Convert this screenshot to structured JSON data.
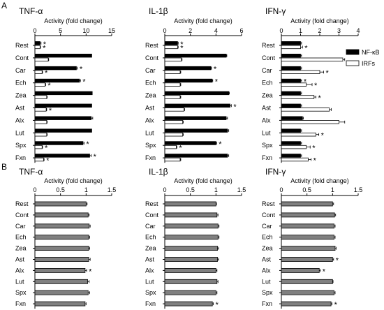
{
  "panel_labels": [
    "A",
    "B"
  ],
  "colors": {
    "nfkb": "#000000",
    "irfs": "#ffffff",
    "panelB": "#808080",
    "stroke": "#000000"
  },
  "legend": [
    {
      "label": "NF-κB",
      "fill": "#000000"
    },
    {
      "label": "IRFs",
      "fill": "#ffffff"
    }
  ],
  "chart_data": [
    {
      "panel": "A",
      "title": "TNF-α",
      "type": "bar",
      "orientation": "horizontal",
      "xlabel": "Activity (fold change)",
      "xlim": [
        0,
        15
      ],
      "xticks": [
        0,
        5,
        10,
        15
      ],
      "categories": [
        "Rest",
        "Cont",
        "Car",
        "Ech",
        "Zea",
        "Ast",
        "Alx",
        "Lut",
        "Spx",
        "Fxn"
      ],
      "series": [
        {
          "name": "NF-κB",
          "values": [
            1.0,
            11.1,
            8.1,
            8.7,
            11.2,
            11.1,
            11.0,
            11.1,
            9.4,
            10.7
          ],
          "errors": [
            0.2,
            0.0,
            0.2,
            0.2,
            0.0,
            0.0,
            0.3,
            0.0,
            0.2,
            0.3
          ],
          "significant": [
            true,
            false,
            true,
            true,
            false,
            false,
            false,
            false,
            true,
            true
          ]
        },
        {
          "name": "IRFs",
          "values": [
            1.0,
            2.6,
            1.4,
            2.0,
            2.3,
            2.2,
            2.3,
            2.3,
            1.4,
            1.7
          ],
          "errors": [
            0.1,
            0.1,
            0.1,
            0.1,
            0.1,
            0.1,
            0.1,
            0.1,
            0.1,
            0.1
          ],
          "significant": [
            true,
            false,
            true,
            true,
            false,
            true,
            false,
            false,
            true,
            true
          ]
        }
      ]
    },
    {
      "panel": "A",
      "title": "IL-1β",
      "type": "bar",
      "orientation": "horizontal",
      "xlabel": "Activity (fold change)",
      "xlim": [
        0,
        6
      ],
      "xticks": [
        0,
        2,
        4,
        6
      ],
      "categories": [
        "Rest",
        "Cont",
        "Car",
        "Ech",
        "Zea",
        "Ast",
        "Alx",
        "Lut",
        "Spx",
        "Fxn"
      ],
      "series": [
        {
          "name": "NF-κB",
          "values": [
            1.0,
            4.8,
            3.6,
            3.7,
            5.0,
            5.1,
            4.8,
            4.9,
            4.0,
            4.9
          ],
          "errors": [
            0.05,
            0.05,
            0.05,
            0.05,
            0.05,
            0.1,
            0.1,
            0.1,
            0.05,
            0.1
          ],
          "significant": [
            true,
            false,
            true,
            true,
            false,
            true,
            false,
            false,
            true,
            false
          ]
        },
        {
          "name": "IRFs",
          "values": [
            1.0,
            1.3,
            1.2,
            1.2,
            1.2,
            1.5,
            1.4,
            1.4,
            0.9,
            1.2
          ],
          "errors": [
            0.05,
            0.05,
            0.05,
            0.05,
            0.05,
            0.05,
            0.05,
            0.05,
            0.05,
            0.05
          ],
          "significant": [
            true,
            false,
            false,
            false,
            false,
            false,
            false,
            false,
            true,
            false
          ]
        }
      ]
    },
    {
      "panel": "A",
      "title": "IFN-γ",
      "type": "bar",
      "orientation": "horizontal",
      "xlabel": "Activity (fold change)",
      "xlim": [
        0,
        4
      ],
      "xticks": [
        0,
        1,
        2,
        3,
        4
      ],
      "categories": [
        "Rest",
        "Cont",
        "Car",
        "Ech",
        "Zea",
        "Ast",
        "Alx",
        "Lut",
        "Spx",
        "Fxn"
      ],
      "series": [
        {
          "name": "NF-κB",
          "values": [
            1.0,
            1.0,
            1.0,
            1.0,
            1.0,
            1.0,
            1.1,
            1.0,
            1.0,
            1.0
          ],
          "errors": [
            0.05,
            0.05,
            0.05,
            0.05,
            0.05,
            0.05,
            0.05,
            0.05,
            0.05,
            0.05
          ],
          "significant": [
            false,
            false,
            false,
            true,
            false,
            false,
            false,
            false,
            false,
            false
          ]
        },
        {
          "name": "IRFs",
          "values": [
            1.0,
            3.2,
            2.0,
            1.3,
            1.7,
            2.5,
            3.0,
            1.8,
            1.3,
            1.4
          ],
          "errors": [
            0.1,
            0.1,
            0.2,
            0.3,
            0.1,
            0.1,
            0.3,
            0.15,
            0.2,
            0.15
          ],
          "significant": [
            true,
            false,
            true,
            true,
            true,
            false,
            false,
            true,
            true,
            true
          ]
        }
      ]
    },
    {
      "panel": "B",
      "title": "TNF-α",
      "type": "bar",
      "orientation": "horizontal",
      "xlabel": "Activity (fold change)",
      "xlim": [
        0,
        1.5
      ],
      "xticks": [
        0,
        0.5,
        1,
        1.5
      ],
      "categories": [
        "Rest",
        "Cont",
        "Car",
        "Ech",
        "Zea",
        "Ast",
        "Alx",
        "Lut",
        "Spx",
        "Fxn"
      ],
      "series": [
        {
          "name": "",
          "values": [
            1.0,
            1.04,
            1.06,
            1.05,
            1.05,
            1.05,
            0.98,
            1.03,
            1.04,
            0.98
          ],
          "errors": [
            0.02,
            0.02,
            0.02,
            0.02,
            0.02,
            0.03,
            0.03,
            0.03,
            0.03,
            0.02
          ],
          "significant": [
            false,
            false,
            false,
            false,
            false,
            false,
            true,
            false,
            false,
            false
          ]
        }
      ]
    },
    {
      "panel": "B",
      "title": "IL-1β",
      "type": "bar",
      "orientation": "horizontal",
      "xlabel": "Activity (fold change)",
      "xlim": [
        0,
        1.5
      ],
      "xticks": [
        0,
        0.5,
        1,
        1.5
      ],
      "categories": [
        "Rest",
        "Cont",
        "Car",
        "Ech",
        "Zea",
        "Ast",
        "Alx",
        "Lut",
        "Spx",
        "Fxn"
      ],
      "series": [
        {
          "name": "",
          "values": [
            1.0,
            1.02,
            1.04,
            1.04,
            1.03,
            1.03,
            1.0,
            1.02,
            1.0,
            0.93
          ],
          "errors": [
            0.01,
            0.02,
            0.02,
            0.02,
            0.02,
            0.02,
            0.02,
            0.02,
            0.02,
            0.02
          ],
          "significant": [
            false,
            false,
            false,
            false,
            false,
            false,
            false,
            false,
            false,
            true
          ]
        }
      ]
    },
    {
      "panel": "B",
      "title": "IFN-γ",
      "type": "bar",
      "orientation": "horizontal",
      "xlabel": "Activity (fold change)",
      "xlim": [
        0,
        1.5
      ],
      "xticks": [
        0,
        0.5,
        1,
        1.5
      ],
      "categories": [
        "Rest",
        "Cont",
        "Car",
        "Ech",
        "Zea",
        "Ast",
        "Alx",
        "Lut",
        "Spx",
        "Fxn"
      ],
      "series": [
        {
          "name": "",
          "values": [
            1.0,
            1.04,
            1.03,
            1.03,
            1.05,
            1.0,
            0.74,
            1.0,
            1.03,
            0.97
          ],
          "errors": [
            0.02,
            0.02,
            0.02,
            0.02,
            0.02,
            0.02,
            0.02,
            0.01,
            0.02,
            0.02
          ],
          "significant": [
            false,
            false,
            false,
            false,
            false,
            true,
            true,
            false,
            false,
            true
          ]
        }
      ]
    }
  ]
}
